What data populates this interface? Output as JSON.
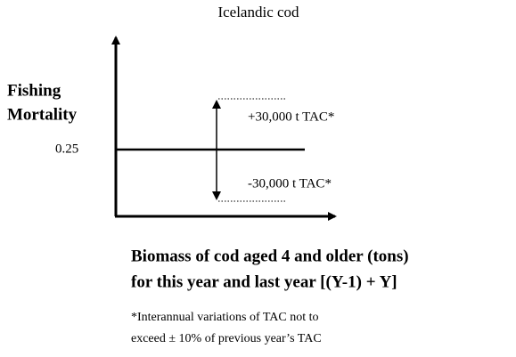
{
  "title": "Icelandic cod",
  "y_axis": {
    "label": [
      "Fishing",
      "Mortality"
    ],
    "level_label": "0.25"
  },
  "annotations": {
    "upper": "+30,000 t TAC*",
    "lower": "-30,000 t TAC*"
  },
  "x_axis": {
    "label": [
      "Biomass of cod aged 4 and older (tons)",
      "for this year and last year [(Y-1) + Y]"
    ]
  },
  "footnote": [
    "*Interannual variations of TAC not to",
    "exceed ± 10% of previous year’s TAC"
  ]
}
